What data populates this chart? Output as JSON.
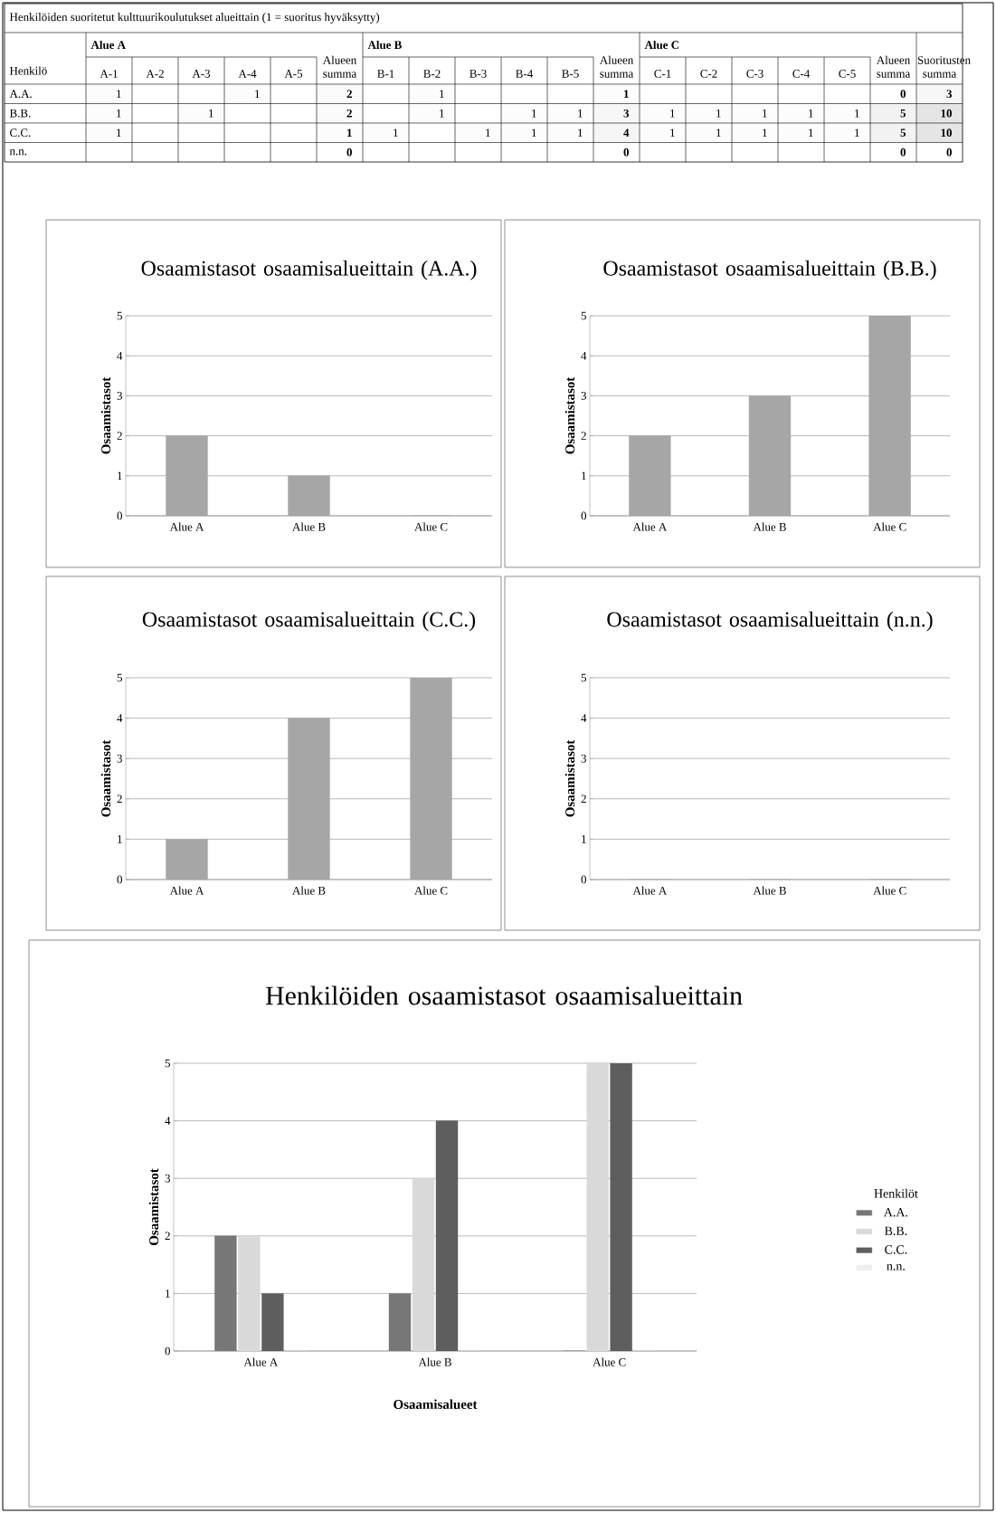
{
  "chart_data": [
    {
      "type": "heatmap",
      "title": "Henkilöiden suoritetut kulttuurikoulutukset alueittain (1 = suoritus hyväksytty)",
      "ylabel": "Henkilö",
      "annotations": [
        "Alue A",
        "Alue B",
        "Alue C"
      ],
      "categories": [
        "A-1",
        "A-2",
        "A-3",
        "A-4",
        "A-5",
        "Alueen summa",
        "B-1",
        "B-2",
        "B-3",
        "B-4",
        "B-5",
        "Alueen summa",
        "C-1",
        "C-2",
        "C-3",
        "C-4",
        "C-5",
        "Alueen summa",
        "Suoritusten summa"
      ],
      "y_categories": [
        "A.A.",
        "B.B.",
        "C.C.",
        "n.n."
      ],
      "cells": [
        [
          1,
          null,
          null,
          1,
          null,
          2,
          null,
          1,
          null,
          null,
          null,
          1,
          null,
          null,
          null,
          null,
          null,
          0,
          3
        ],
        [
          1,
          null,
          1,
          null,
          null,
          2,
          null,
          1,
          null,
          1,
          1,
          3,
          1,
          1,
          1,
          1,
          1,
          5,
          10
        ],
        [
          1,
          null,
          null,
          null,
          null,
          1,
          1,
          null,
          1,
          1,
          1,
          4,
          1,
          1,
          1,
          1,
          1,
          5,
          10
        ],
        [
          null,
          null,
          null,
          null,
          null,
          0,
          null,
          null,
          null,
          null,
          null,
          0,
          null,
          null,
          null,
          null,
          null,
          0,
          0
        ]
      ],
      "cell_labels": [
        [
          "1",
          null,
          null,
          "1",
          null,
          "2",
          null,
          "1",
          null,
          null,
          null,
          "1",
          null,
          null,
          null,
          null,
          null,
          "0",
          "3"
        ],
        [
          "1",
          null,
          "1",
          null,
          null,
          "2",
          null,
          "1",
          null,
          "1",
          "1",
          "3",
          "1",
          "1",
          "1",
          "1",
          "1",
          "5",
          "10"
        ],
        [
          "1",
          null,
          null,
          null,
          null,
          "1",
          "1",
          null,
          "1",
          "1",
          "1",
          "4",
          "1",
          "1",
          "1",
          "1",
          "1",
          "5",
          "10"
        ],
        [
          null,
          null,
          null,
          null,
          null,
          "0",
          null,
          null,
          null,
          null,
          null,
          "0",
          null,
          null,
          null,
          null,
          null,
          "0",
          "0"
        ]
      ]
    },
    {
      "type": "bar",
      "title": "Osaamistasot osaamisalueittain (A.A.)",
      "ylabel": "Osaamistasot",
      "categories": [
        "Alue A",
        "Alue B",
        "Alue C"
      ],
      "values": [
        2,
        1,
        0
      ],
      "color": "#a6a6a6",
      "ylim": [
        0,
        5
      ],
      "yticks": [
        0,
        1,
        2,
        3,
        4,
        5
      ],
      "grid": "y"
    },
    {
      "type": "bar",
      "title": "Osaamistasot osaamisalueittain (B.B.)",
      "ylabel": "Osaamistasot",
      "categories": [
        "Alue A",
        "Alue B",
        "Alue C"
      ],
      "values": [
        2,
        3,
        5
      ],
      "color": "#a6a6a6",
      "ylim": [
        0,
        5
      ],
      "yticks": [
        0,
        1,
        2,
        3,
        4,
        5
      ],
      "grid": "y"
    },
    {
      "type": "bar",
      "title": "Osaamistasot osaamisalueittain (C.C.)",
      "ylabel": "Osaamistasot",
      "categories": [
        "Alue A",
        "Alue B",
        "Alue C"
      ],
      "values": [
        1,
        4,
        5
      ],
      "color": "#a6a6a6",
      "ylim": [
        0,
        5
      ],
      "yticks": [
        0,
        1,
        2,
        3,
        4,
        5
      ],
      "grid": "y"
    },
    {
      "type": "bar",
      "title": "Osaamistasot osaamisalueittain (n.n.)",
      "ylabel": "Osaamistasot",
      "categories": [
        "Alue A",
        "Alue B",
        "Alue C"
      ],
      "values": [
        0,
        0,
        0
      ],
      "color": "#a6a6a6",
      "ylim": [
        0,
        5
      ],
      "yticks": [
        0,
        1,
        2,
        3,
        4,
        5
      ],
      "grid": "y"
    },
    {
      "type": "bar",
      "title": "Henkilöiden osaamistasot osaamisalueittain",
      "ylabel": "Osaamistasot",
      "xlabel": "Osaamisalueet",
      "legend_title": "Henkilöt",
      "legend": "right",
      "categories": [
        "Alue A",
        "Alue B",
        "Alue C"
      ],
      "ylim": [
        0,
        5
      ],
      "yticks": [
        0,
        1,
        2,
        3,
        4,
        5
      ],
      "grid": "y",
      "series": [
        {
          "name": "A.A.",
          "color": "#777777",
          "values": [
            2,
            1,
            0
          ]
        },
        {
          "name": "B.B.",
          "color": "#d9d9d9",
          "values": [
            2,
            3,
            5
          ]
        },
        {
          "name": "C.C.",
          "color": "#5e5e5e",
          "values": [
            1,
            4,
            5
          ]
        },
        {
          "name": "n.n.",
          "color": "#eeeeee",
          "values": [
            0,
            0,
            0
          ]
        }
      ]
    }
  ]
}
